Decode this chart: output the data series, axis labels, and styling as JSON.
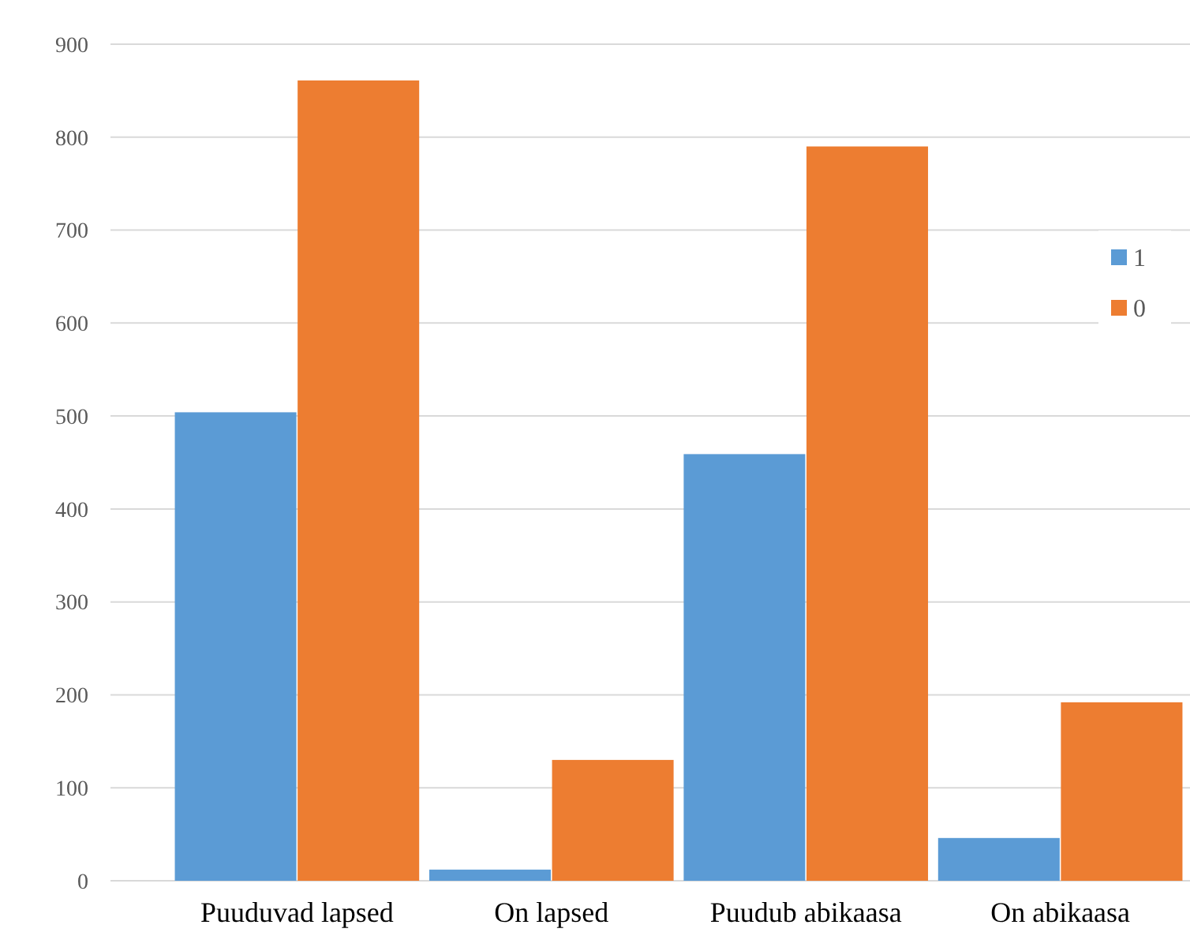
{
  "chart_data": {
    "type": "bar",
    "categories": [
      "Puuduvad lapsed",
      "On lapsed",
      "Puudub abikaasa",
      "On abikaasa"
    ],
    "series": [
      {
        "name": "1",
        "color": "#5b9bd5",
        "values": [
          504,
          12,
          459,
          46
        ]
      },
      {
        "name": "0",
        "color": "#ed7d31",
        "values": [
          861,
          130,
          790,
          192
        ]
      }
    ],
    "ylim": [
      0,
      900
    ],
    "yticks": [
      0,
      100,
      200,
      300,
      400,
      500,
      600,
      700,
      800,
      900
    ],
    "grid": "y",
    "legend": "right"
  }
}
